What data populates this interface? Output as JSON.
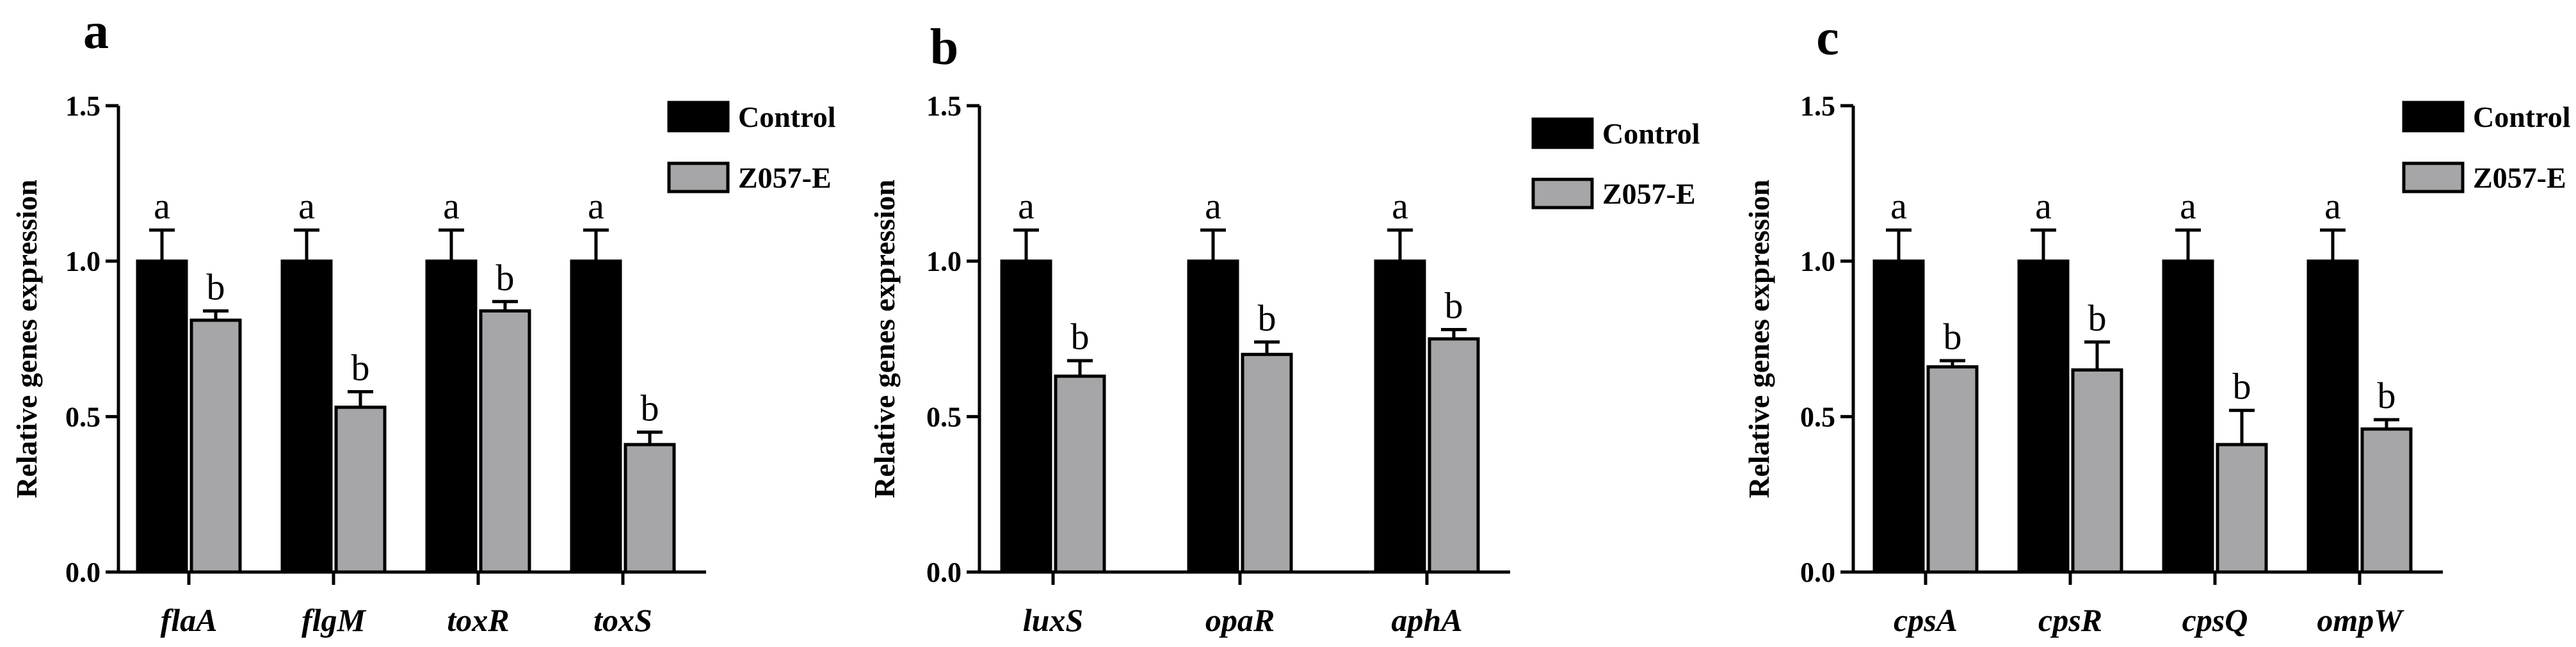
{
  "colors": {
    "control": "#000000",
    "treated": "#a6a6a8",
    "axis": "#000000"
  },
  "chart_data": [
    {
      "type": "bar",
      "panel": "a",
      "ylabel": "Relative genes expression",
      "ylim": [
        0,
        1.5
      ],
      "yticks": [
        "0.0",
        "0.5",
        "1.0",
        "1.5"
      ],
      "categories": [
        "flaA",
        "flgM",
        "toxR",
        "toxS"
      ],
      "legend": "top-right",
      "series": [
        {
          "name": "Control",
          "values": [
            1.0,
            1.0,
            1.0,
            1.0
          ],
          "errors": [
            0.1,
            0.1,
            0.1,
            0.1
          ],
          "labels": [
            "a",
            "a",
            "a",
            "a"
          ]
        },
        {
          "name": "Z057-E",
          "values": [
            0.81,
            0.53,
            0.84,
            0.41
          ],
          "errors": [
            0.03,
            0.05,
            0.03,
            0.04
          ],
          "labels": [
            "b",
            "b",
            "b",
            "b"
          ]
        }
      ]
    },
    {
      "type": "bar",
      "panel": "b",
      "ylabel": "Relative genes expression",
      "ylim": [
        0,
        1.5
      ],
      "yticks": [
        "0.0",
        "0.5",
        "1.0",
        "1.5"
      ],
      "categories": [
        "luxS",
        "opaR",
        "aphA"
      ],
      "legend": "top-right",
      "series": [
        {
          "name": "Control",
          "values": [
            1.0,
            1.0,
            1.0
          ],
          "errors": [
            0.1,
            0.1,
            0.1
          ],
          "labels": [
            "a",
            "a",
            "a"
          ]
        },
        {
          "name": "Z057-E",
          "values": [
            0.63,
            0.7,
            0.75
          ],
          "errors": [
            0.05,
            0.04,
            0.03
          ],
          "labels": [
            "b",
            "b",
            "b"
          ]
        }
      ]
    },
    {
      "type": "bar",
      "panel": "c",
      "ylabel": "Relative genes expression",
      "ylim": [
        0,
        1.5
      ],
      "yticks": [
        "0.0",
        "0.5",
        "1.0",
        "1.5"
      ],
      "categories": [
        "cpsA",
        "cpsR",
        "cpsQ",
        "ompW"
      ],
      "legend": "top-right",
      "series": [
        {
          "name": "Control",
          "values": [
            1.0,
            1.0,
            1.0,
            1.0
          ],
          "errors": [
            0.1,
            0.1,
            0.1,
            0.1
          ],
          "labels": [
            "a",
            "a",
            "a",
            "a"
          ]
        },
        {
          "name": "Z057-E",
          "values": [
            0.66,
            0.65,
            0.41,
            0.46
          ],
          "errors": [
            0.02,
            0.09,
            0.11,
            0.03
          ],
          "labels": [
            "b",
            "b",
            "b",
            "b"
          ]
        }
      ]
    }
  ]
}
